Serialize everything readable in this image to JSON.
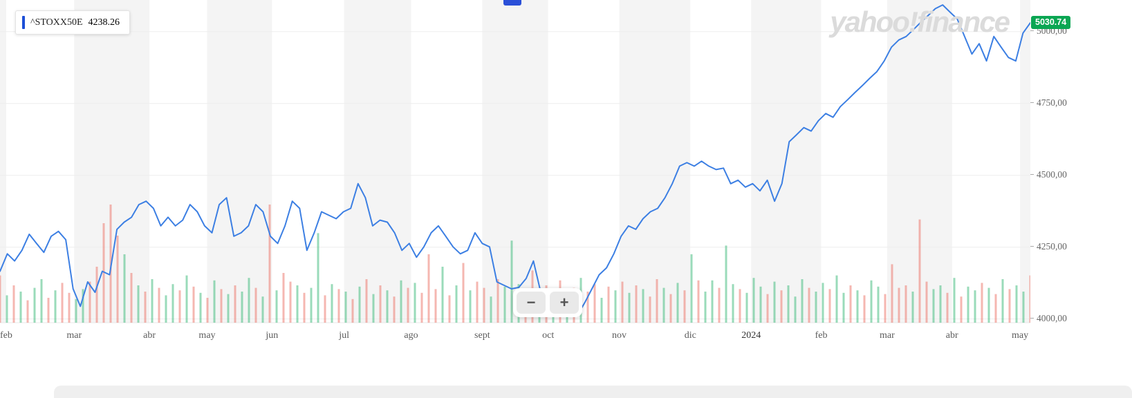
{
  "watermark": {
    "text": "yahoo!finance"
  },
  "legend": {
    "symbol": "^STOXX50E",
    "value": "4238.26"
  },
  "price_badge": {
    "value": "5030.74",
    "color": "#0aa653"
  },
  "controls": {
    "zoom_out_label": "−",
    "zoom_in_label": "+"
  },
  "colors": {
    "line": "#3c7fe3",
    "legend_indicator": "#1d4fd7",
    "volume_up": "#36b875",
    "volume_down": "#ec7063",
    "stripe": "#f4f4f4",
    "gridline": "#ededed",
    "scroll_thumb": "#2b50d8",
    "badge_green": "#0aa653"
  },
  "chart_data": {
    "type": "line",
    "symbol": "^STOXX50E",
    "current_value": 5030.74,
    "legend_value": 4238.26,
    "ylim": [
      3980,
      5110
    ],
    "grid": true,
    "legend_position": "top-left",
    "y_ticks": [
      {
        "label": "5000,00",
        "value": 5000
      },
      {
        "label": "4750,00",
        "value": 4750
      },
      {
        "label": "4500,00",
        "value": 4500
      },
      {
        "label": "4250,00",
        "value": 4250
      },
      {
        "label": "4000,00",
        "value": 4000
      }
    ],
    "x_labels": [
      {
        "label": "feb",
        "pos": 0.006
      },
      {
        "label": "mar",
        "pos": 0.072
      },
      {
        "label": "abr",
        "pos": 0.145
      },
      {
        "label": "may",
        "pos": 0.201
      },
      {
        "label": "jun",
        "pos": 0.264
      },
      {
        "label": "jul",
        "pos": 0.334
      },
      {
        "label": "ago",
        "pos": 0.399
      },
      {
        "label": "sept",
        "pos": 0.468
      },
      {
        "label": "oct",
        "pos": 0.532
      },
      {
        "label": "nov",
        "pos": 0.601
      },
      {
        "label": "dic",
        "pos": 0.67
      },
      {
        "label": "2024",
        "pos": 0.729,
        "year": true
      },
      {
        "label": "feb",
        "pos": 0.797
      },
      {
        "label": "mar",
        "pos": 0.861
      },
      {
        "label": "abr",
        "pos": 0.924
      },
      {
        "label": "may",
        "pos": 0.99
      }
    ],
    "series": [
      {
        "name": "^STOXX50E",
        "color": "#3c7fe3",
        "values": [
          4166,
          4227,
          4202,
          4239,
          4295,
          4263,
          4232,
          4288,
          4305,
          4276,
          4105,
          4044,
          4129,
          4093,
          4166,
          4154,
          4312,
          4337,
          4354,
          4398,
          4410,
          4385,
          4324,
          4354,
          4324,
          4344,
          4398,
          4373,
          4324,
          4300,
          4398,
          4422,
          4288,
          4300,
          4324,
          4398,
          4373,
          4288,
          4263,
          4324,
          4410,
          4385,
          4239,
          4300,
          4373,
          4361,
          4349,
          4373,
          4385,
          4471,
          4422,
          4324,
          4344,
          4337,
          4300,
          4239,
          4263,
          4215,
          4251,
          4300,
          4324,
          4288,
          4251,
          4227,
          4239,
          4300,
          4263,
          4251,
          4129,
          4117,
          4105,
          4110,
          4141,
          4202,
          4093,
          4080,
          4105,
          4020,
          4044,
          4012,
          4056,
          4105,
          4154,
          4178,
          4227,
          4288,
          4324,
          4312,
          4349,
          4373,
          4385,
          4422,
          4471,
          4532,
          4544,
          4532,
          4549,
          4532,
          4520,
          4525,
          4471,
          4483,
          4459,
          4471,
          4446,
          4483,
          4410,
          4471,
          4617,
          4641,
          4666,
          4654,
          4690,
          4715,
          4702,
          4739,
          4763,
          4788,
          4812,
          4837,
          4861,
          4898,
          4946,
          4971,
          4983,
          5007,
          5032,
          5056,
          5080,
          5093,
          5068,
          5044,
          4983,
          4922,
          4958,
          4898,
          4983,
          4946,
          4910,
          4898,
          4995,
          5030.74
        ]
      }
    ],
    "volume": {
      "up_color": "#36b875",
      "down_color": "#ec7063",
      "opacity": 0.5,
      "scale_max": 100,
      "values": [
        -38,
        22,
        -30,
        25,
        -18,
        28,
        35,
        -20,
        26,
        -32,
        -24,
        19,
        27,
        -33,
        -45,
        -80,
        -95,
        -70,
        55,
        -40,
        30,
        -25,
        35,
        -28,
        22,
        31,
        -26,
        38,
        -29,
        24,
        -20,
        34,
        -27,
        23,
        -30,
        25,
        36,
        -28,
        21,
        -95,
        26,
        -40,
        -33,
        30,
        -24,
        28,
        72,
        -22,
        31,
        -27,
        25,
        -19,
        29,
        -35,
        23,
        -30,
        26,
        -21,
        34,
        -28,
        32,
        -24,
        -55,
        -27,
        45,
        -22,
        30,
        -48,
        26,
        -33,
        -28,
        21,
        -35,
        29,
        66,
        31,
        -26,
        -42,
        23,
        -30,
        27,
        -34,
        22,
        -28,
        36,
        -25,
        -31,
        20,
        -29,
        26,
        -33,
        24,
        -30,
        27,
        -21,
        -35,
        28,
        -23,
        32,
        -26,
        55,
        -34,
        25,
        34,
        -28,
        62,
        31,
        -27,
        24,
        36,
        29,
        -23,
        33,
        -26,
        30,
        21,
        35,
        -28,
        25,
        32,
        -27,
        38,
        24,
        -30,
        26,
        -22,
        34,
        29,
        -23,
        -47,
        -28,
        -30,
        25,
        -83,
        -33,
        27,
        30,
        -24,
        36,
        -21,
        29,
        26,
        -32,
        28,
        -23,
        35,
        -27,
        30,
        25,
        -38
      ]
    }
  }
}
